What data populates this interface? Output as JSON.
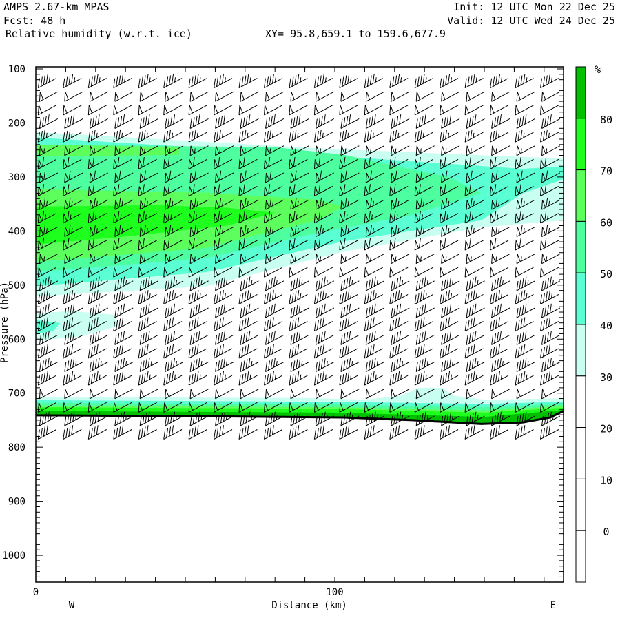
{
  "header": {
    "model": "AMPS 2.67-km MPAS",
    "fcst": "Fcst:   48 h",
    "field": "Relative humidity (w.r.t. ice)",
    "xy": "XY=  95.8,659.1 to 159.6,677.9",
    "init": "Init: 12 UTC Mon 22 Dec 25",
    "valid": "Valid: 12 UTC Wed 24 Dec 25"
  },
  "chart_data": {
    "type": "area",
    "title": "Relative humidity (w.r.t. ice)",
    "xlabel": "Distance (km)",
    "ylabel": "Pressure (hPa)",
    "xlim": [
      0,
      176.5
    ],
    "ylim": [
      1050,
      97
    ],
    "x_ticks": [
      {
        "v": 0,
        "label": "0"
      },
      {
        "v": 100,
        "label": "100"
      }
    ],
    "x_end_labels": {
      "left": "W",
      "right": "E"
    },
    "y_ticks": [
      {
        "v": 100,
        "label": "100"
      },
      {
        "v": 200,
        "label": "200"
      },
      {
        "v": 300,
        "label": "300"
      },
      {
        "v": 400,
        "label": "400"
      },
      {
        "v": 500,
        "label": "500"
      },
      {
        "v": 600,
        "label": "600"
      },
      {
        "v": 700,
        "label": "700"
      },
      {
        "v": 800,
        "label": "800"
      },
      {
        "v": 900,
        "label": "900"
      },
      {
        "v": 1000,
        "label": "1000"
      }
    ],
    "colorbar": {
      "unit": "%",
      "labels": [
        "80",
        "70",
        "60",
        "50",
        "40",
        "30",
        "20",
        "10",
        "0"
      ],
      "colors": [
        "#00c000",
        "#1eff1e",
        "#5cff5c",
        "#4effa0",
        "#5affd4",
        "#c8fff0",
        "#ffffff",
        "#ffffff",
        "#ffffff",
        "#ffffff"
      ]
    },
    "levels": [
      30,
      40,
      50,
      60,
      70,
      80
    ],
    "level_colors": {
      "30": "#c8fff0",
      "40": "#5affd4",
      "50": "#4effa0",
      "60": "#5cff5c",
      "70": "#1eff1e",
      "80": "#00c000"
    },
    "regions": [
      {
        "level": 30,
        "pts": [
          [
            0,
            217
          ],
          [
            94,
            247
          ],
          [
            176.5,
            266
          ],
          [
            176.5,
            380
          ],
          [
            149,
            393
          ],
          [
            103,
            438
          ],
          [
            57,
            502
          ],
          [
            0,
            521
          ]
        ]
      },
      {
        "level": 30,
        "pts": [
          [
            0,
            552
          ],
          [
            12,
            548
          ],
          [
            26,
            555
          ],
          [
            28,
            575
          ],
          [
            15,
            595
          ],
          [
            0,
            603
          ]
        ]
      },
      {
        "level": 40,
        "pts": [
          [
            0,
            227
          ],
          [
            94,
            259
          ],
          [
            163,
            285
          ],
          [
            176.5,
            280
          ],
          [
            176.5,
            304
          ],
          [
            163,
            330
          ],
          [
            149,
            380
          ],
          [
            103,
            419
          ],
          [
            57,
            476
          ],
          [
            0,
            502
          ]
        ]
      },
      {
        "level": 40,
        "pts": [
          [
            0,
            565
          ],
          [
            8,
            570
          ],
          [
            6,
            585
          ],
          [
            0,
            590
          ]
        ]
      },
      {
        "level": 50,
        "pts": [
          [
            0,
            240
          ],
          [
            80,
            245
          ],
          [
            103,
            259
          ],
          [
            138,
            300
          ],
          [
            149,
            330
          ],
          [
            126,
            370
          ],
          [
            92,
            406
          ],
          [
            57,
            450
          ],
          [
            0,
            476
          ]
        ]
      },
      {
        "level": 60,
        "pts": [
          [
            0,
            240
          ],
          [
            48,
            245
          ],
          [
            48,
            259
          ],
          [
            0,
            262
          ]
        ]
      },
      {
        "level": 60,
        "pts": [
          [
            0,
            323
          ],
          [
            57,
            329
          ],
          [
            94,
            342
          ],
          [
            103,
            355
          ],
          [
            94,
            380
          ],
          [
            57,
            431
          ],
          [
            0,
            457
          ]
        ]
      },
      {
        "level": 70,
        "pts": [
          [
            0,
            355
          ],
          [
            40,
            352
          ],
          [
            64,
            357
          ],
          [
            80,
            366
          ],
          [
            64,
            390
          ],
          [
            30,
            410
          ],
          [
            0,
            425
          ]
        ]
      }
    ],
    "surface_layers": [
      {
        "level": 30,
        "top": [
          [
            0,
            707
          ],
          [
            90,
            709
          ],
          [
            110,
            712
          ],
          [
            122,
            705
          ],
          [
            128,
            690
          ],
          [
            136,
            690
          ],
          [
            140,
            705
          ],
          [
            150,
            712
          ],
          [
            176.5,
            710
          ]
        ]
      },
      {
        "level": 40,
        "top": [
          [
            0,
            713
          ],
          [
            100,
            716
          ],
          [
            150,
            720
          ],
          [
            176.5,
            716
          ]
        ]
      },
      {
        "level": 50,
        "top": [
          [
            0,
            718
          ],
          [
            100,
            721
          ],
          [
            150,
            726
          ],
          [
            176.5,
            720
          ]
        ]
      },
      {
        "level": 60,
        "top": [
          [
            0,
            723
          ],
          [
            100,
            726
          ],
          [
            150,
            732
          ],
          [
            176.5,
            724
          ]
        ]
      },
      {
        "level": 70,
        "top": [
          [
            0,
            726
          ],
          [
            100,
            729
          ],
          [
            150,
            736
          ],
          [
            176.5,
            727
          ]
        ]
      },
      {
        "level": 80,
        "top": [
          [
            0,
            733
          ],
          [
            100,
            736
          ],
          [
            150,
            744
          ],
          [
            176.5,
            731
          ]
        ]
      }
    ],
    "terrain": [
      [
        0,
        741
      ],
      [
        30,
        742
      ],
      [
        60,
        743
      ],
      [
        103,
        745
      ],
      [
        126,
        750
      ],
      [
        149,
        757
      ],
      [
        163,
        754
      ],
      [
        172,
        745
      ],
      [
        176.5,
        733
      ]
    ],
    "wind_barbs": {
      "x_km": [
        4.1,
        12.5,
        20.9,
        29.3,
        37.7,
        46.1,
        54.5,
        62.9,
        71.3,
        79.7,
        88.1,
        96.5,
        104.9,
        113.3,
        121.7,
        130.1,
        138.5,
        146.9,
        155.3,
        163.7,
        172.1
      ],
      "p_levels": [
        125,
        150,
        175,
        200,
        225,
        250,
        275,
        300,
        325,
        350,
        375,
        400,
        425,
        450,
        475,
        500,
        525,
        550,
        575,
        600,
        625,
        650,
        675,
        700,
        725,
        750,
        775
      ],
      "speed_kt": [
        45,
        50,
        50,
        40,
        35,
        55,
        60,
        60,
        60,
        65,
        65,
        65,
        60,
        55,
        50,
        45,
        45,
        40,
        40,
        40,
        40,
        45,
        45,
        50,
        50,
        45,
        40
      ],
      "direction_deg": 240
    }
  }
}
